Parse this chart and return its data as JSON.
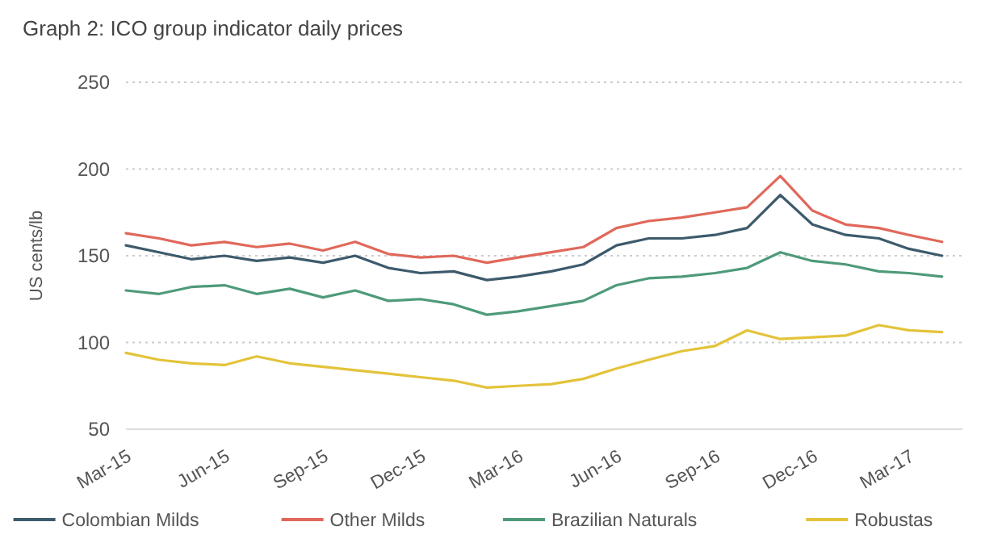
{
  "chart_data": {
    "type": "line",
    "title": "Graph 2: ICO group indicator daily prices",
    "ylabel": "US cents/lb",
    "x": [
      "2015-03-01",
      "2015-04-01",
      "2015-05-01",
      "2015-06-01",
      "2015-07-01",
      "2015-08-01",
      "2015-09-01",
      "2015-10-01",
      "2015-11-01",
      "2015-12-01",
      "2016-01-01",
      "2016-02-01",
      "2016-03-01",
      "2016-04-01",
      "2016-05-01",
      "2016-06-01",
      "2016-07-01",
      "2016-08-01",
      "2016-09-01",
      "2016-10-01",
      "2016-11-01",
      "2016-12-01",
      "2017-01-01",
      "2017-02-01",
      "2017-03-01",
      "2017-04-01"
    ],
    "series": [
      {
        "name": "Colombian Milds",
        "color": "#3d5a6c",
        "values": [
          156,
          152,
          148,
          150,
          147,
          149,
          146,
          150,
          143,
          140,
          141,
          136,
          138,
          141,
          145,
          156,
          160,
          160,
          162,
          166,
          185,
          168,
          162,
          160,
          154,
          150
        ]
      },
      {
        "name": "Other Milds",
        "color": "#e0685a",
        "values": [
          163,
          160,
          156,
          158,
          155,
          157,
          153,
          158,
          151,
          149,
          150,
          146,
          149,
          152,
          155,
          166,
          170,
          172,
          175,
          178,
          196,
          176,
          168,
          166,
          162,
          158
        ]
      },
      {
        "name": "Brazilian Naturals",
        "color": "#4e9a79",
        "values": [
          130,
          128,
          132,
          133,
          128,
          131,
          126,
          130,
          124,
          125,
          122,
          116,
          118,
          121,
          124,
          133,
          137,
          138,
          140,
          143,
          152,
          147,
          145,
          141,
          140,
          138
        ]
      },
      {
        "name": "Robustas",
        "color": "#e3c33a",
        "values": [
          94,
          90,
          88,
          87,
          92,
          88,
          86,
          84,
          82,
          80,
          78,
          74,
          75,
          76,
          79,
          85,
          90,
          95,
          98,
          107,
          102,
          103,
          104,
          110,
          107,
          106
        ]
      }
    ],
    "xlim": [
      "2015-03-01",
      "2017-04-20"
    ],
    "xticks": [
      {
        "value": "2015-03-01",
        "label": "Mar-15"
      },
      {
        "value": "2015-06-01",
        "label": "Jun-15"
      },
      {
        "value": "2015-09-01",
        "label": "Sep-15"
      },
      {
        "value": "2015-12-01",
        "label": "Dec-15"
      },
      {
        "value": "2016-03-01",
        "label": "Mar-16"
      },
      {
        "value": "2016-06-01",
        "label": "Jun-16"
      },
      {
        "value": "2016-09-01",
        "label": "Sep-16"
      },
      {
        "value": "2016-12-01",
        "label": "Dec-16"
      },
      {
        "value": "2017-03-01",
        "label": "Mar-17"
      }
    ],
    "ylim": [
      50,
      250
    ],
    "yticks": [
      50,
      100,
      150,
      200,
      250
    ],
    "grid": "y",
    "legend": "bottom",
    "line_style": "solid",
    "marker": "none"
  }
}
